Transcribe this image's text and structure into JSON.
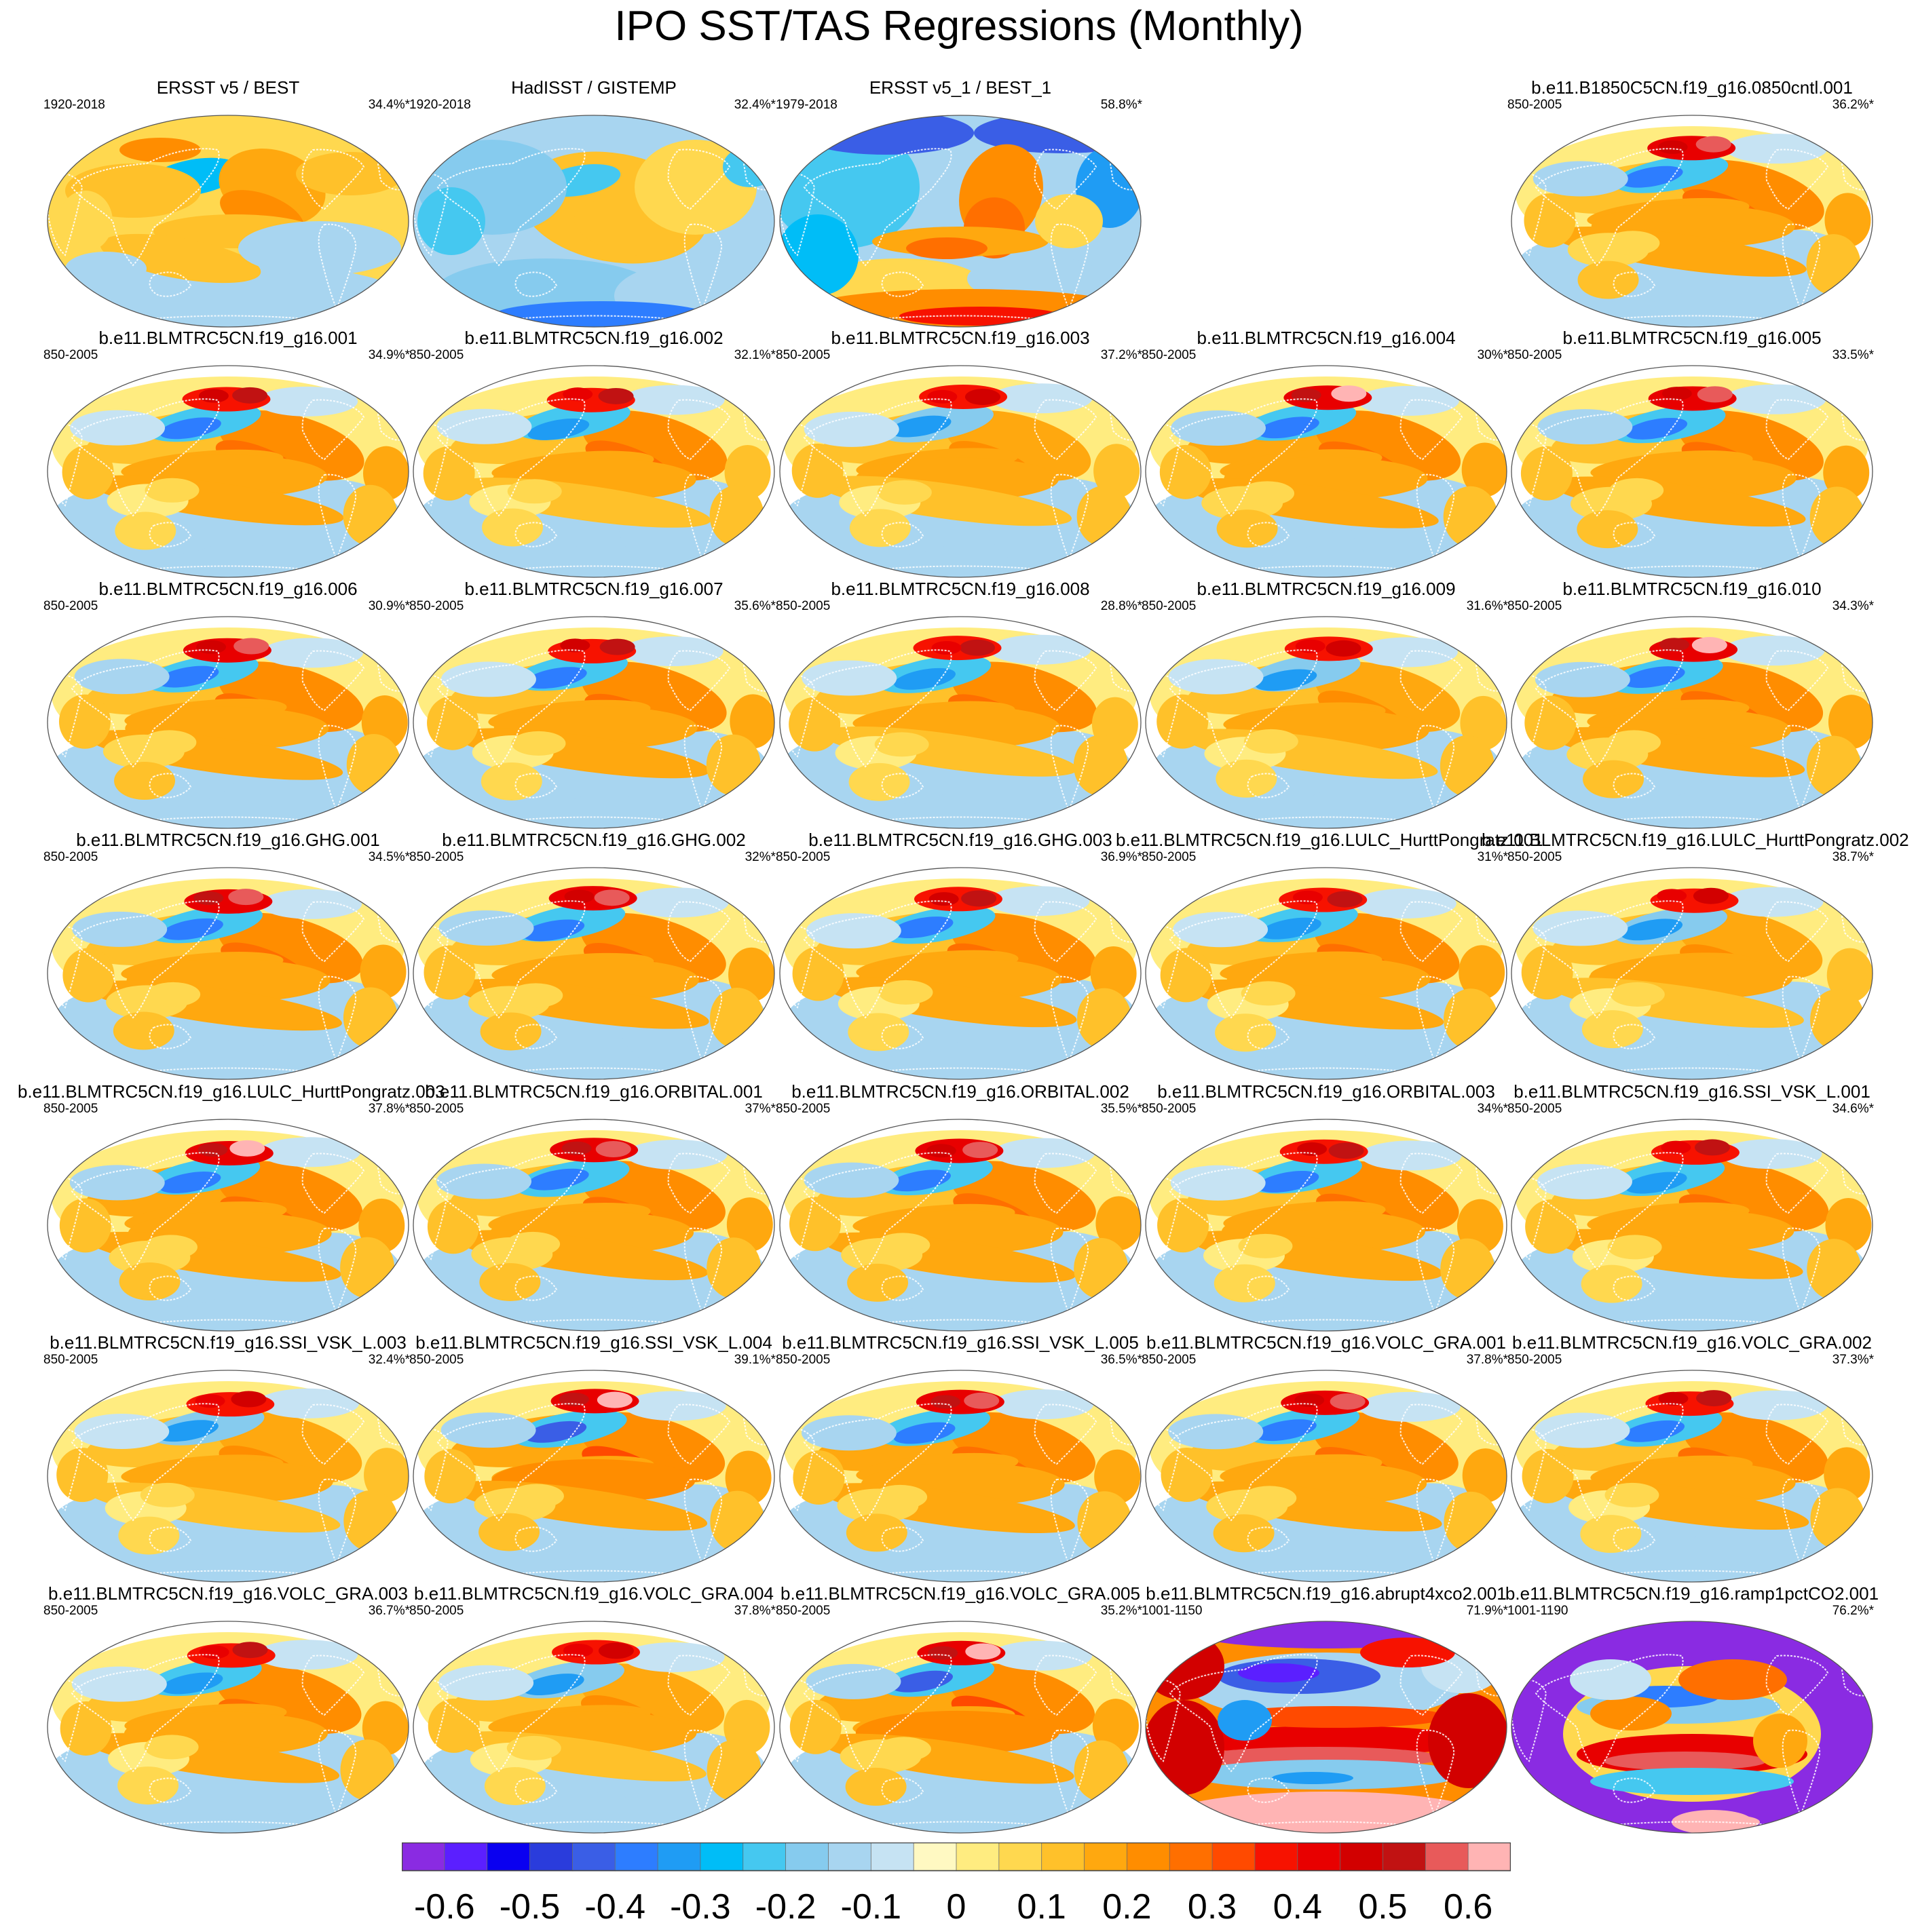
{
  "figure": {
    "title": "IPO SST/TAS Regressions (Monthly)"
  },
  "chart_data": {
    "type": "heatmap",
    "title": "IPO SST/TAS Regressions (Monthly)",
    "projection": "Robinson, Pacific-centered global map",
    "colorbar": {
      "ticks": [
        "-0.6",
        "-0.5",
        "-0.4",
        "-0.3",
        "-0.2",
        "-0.1",
        "0",
        "0.1",
        "0.2",
        "0.3",
        "0.4",
        "0.5",
        "0.6"
      ],
      "tick_values": [
        -0.6,
        -0.5,
        -0.4,
        -0.3,
        -0.2,
        -0.1,
        0,
        0.1,
        0.2,
        0.3,
        0.4,
        0.5,
        0.6
      ],
      "range": [
        -0.65,
        0.65
      ],
      "step": 0.05,
      "colors": [
        "#8a2be2",
        "#5b1fff",
        "#0a00f0",
        "#2a3cdc",
        "#3a5ee6",
        "#2d7dff",
        "#1f9cf4",
        "#00bdf7",
        "#45c8f0",
        "#86cbee",
        "#a8d5f0",
        "#c6e3f3",
        "#fff9c2",
        "#ffec80",
        "#ffd84f",
        "#ffc12a",
        "#ffa80f",
        "#ff8d00",
        "#ff6f00",
        "#ff4a00",
        "#f71200",
        "#e80000",
        "#d20000",
        "#c11212",
        "#e85a5a",
        "#ffb4b4"
      ]
    },
    "panels": [
      {
        "title": "ERSST v5 / BEST",
        "period": "1920-2018",
        "pct": "34.4%*",
        "style": "obs"
      },
      {
        "title": "HadISST / GISTEMP",
        "period": "1920-2018",
        "pct": "32.4%*",
        "style": "obs2"
      },
      {
        "title": "ERSST v5_1 / BEST_1",
        "period": "1979-2018",
        "pct": "58.8%*",
        "style": "obs3"
      },
      null,
      {
        "title": "b.e11.B1850C5CN.f19_g16.0850cntl.001",
        "period": "850-2005",
        "pct": "36.2%*",
        "style": "model"
      },
      {
        "title": "b.e11.BLMTRC5CN.f19_g16.001",
        "period": "850-2005",
        "pct": "34.9%*",
        "style": "model"
      },
      {
        "title": "b.e11.BLMTRC5CN.f19_g16.002",
        "period": "850-2005",
        "pct": "32.1%*",
        "style": "model"
      },
      {
        "title": "b.e11.BLMTRC5CN.f19_g16.003",
        "period": "850-2005",
        "pct": "37.2%*",
        "style": "model"
      },
      {
        "title": "b.e11.BLMTRC5CN.f19_g16.004",
        "period": "850-2005",
        "pct": "30%*",
        "style": "model"
      },
      {
        "title": "b.e11.BLMTRC5CN.f19_g16.005",
        "period": "850-2005",
        "pct": "33.5%*",
        "style": "model"
      },
      {
        "title": "b.e11.BLMTRC5CN.f19_g16.006",
        "period": "850-2005",
        "pct": "30.9%*",
        "style": "model"
      },
      {
        "title": "b.e11.BLMTRC5CN.f19_g16.007",
        "period": "850-2005",
        "pct": "35.6%*",
        "style": "model"
      },
      {
        "title": "b.e11.BLMTRC5CN.f19_g16.008",
        "period": "850-2005",
        "pct": "28.8%*",
        "style": "model"
      },
      {
        "title": "b.e11.BLMTRC5CN.f19_g16.009",
        "period": "850-2005",
        "pct": "31.6%*",
        "style": "model"
      },
      {
        "title": "b.e11.BLMTRC5CN.f19_g16.010",
        "period": "850-2005",
        "pct": "34.3%*",
        "style": "model"
      },
      {
        "title": "b.e11.BLMTRC5CN.f19_g16.GHG.001",
        "period": "850-2005",
        "pct": "34.5%*",
        "style": "model"
      },
      {
        "title": "b.e11.BLMTRC5CN.f19_g16.GHG.002",
        "period": "850-2005",
        "pct": "32%*",
        "style": "model"
      },
      {
        "title": "b.e11.BLMTRC5CN.f19_g16.GHG.003",
        "period": "850-2005",
        "pct": "36.9%*",
        "style": "model"
      },
      {
        "title": "b.e11.BLMTRC5CN.f19_g16.LULC_HurttPongratz.001",
        "period": "850-2005",
        "pct": "31%*",
        "style": "model"
      },
      {
        "title": "b.e11.BLMTRC5CN.f19_g16.LULC_HurttPongratz.002",
        "period": "850-2005",
        "pct": "38.7%*",
        "style": "model"
      },
      {
        "title": "b.e11.BLMTRC5CN.f19_g16.LULC_HurttPongratz.003",
        "period": "850-2005",
        "pct": "37.8%*",
        "style": "model"
      },
      {
        "title": "b.e11.BLMTRC5CN.f19_g16.ORBITAL.001",
        "period": "850-2005",
        "pct": "37%*",
        "style": "model"
      },
      {
        "title": "b.e11.BLMTRC5CN.f19_g16.ORBITAL.002",
        "period": "850-2005",
        "pct": "35.5%*",
        "style": "model"
      },
      {
        "title": "b.e11.BLMTRC5CN.f19_g16.ORBITAL.003",
        "period": "850-2005",
        "pct": "34%*",
        "style": "model"
      },
      {
        "title": "b.e11.BLMTRC5CN.f19_g16.SSI_VSK_L.001",
        "period": "850-2005",
        "pct": "34.6%*",
        "style": "model"
      },
      {
        "title": "b.e11.BLMTRC5CN.f19_g16.SSI_VSK_L.003",
        "period": "850-2005",
        "pct": "32.4%*",
        "style": "model"
      },
      {
        "title": "b.e11.BLMTRC5CN.f19_g16.SSI_VSK_L.004",
        "period": "850-2005",
        "pct": "39.1%*",
        "style": "model"
      },
      {
        "title": "b.e11.BLMTRC5CN.f19_g16.SSI_VSK_L.005",
        "period": "850-2005",
        "pct": "36.5%*",
        "style": "model"
      },
      {
        "title": "b.e11.BLMTRC5CN.f19_g16.VOLC_GRA.001",
        "period": "850-2005",
        "pct": "37.8%*",
        "style": "model"
      },
      {
        "title": "b.e11.BLMTRC5CN.f19_g16.VOLC_GRA.002",
        "period": "850-2005",
        "pct": "37.3%*",
        "style": "model"
      },
      {
        "title": "b.e11.BLMTRC5CN.f19_g16.VOLC_GRA.003",
        "period": "850-2005",
        "pct": "36.7%*",
        "style": "model"
      },
      {
        "title": "b.e11.BLMTRC5CN.f19_g16.VOLC_GRA.004",
        "period": "850-2005",
        "pct": "37.8%*",
        "style": "model"
      },
      {
        "title": "b.e11.BLMTRC5CN.f19_g16.VOLC_GRA.005",
        "period": "850-2005",
        "pct": "35.2%*",
        "style": "model"
      },
      {
        "title": "b.e11.BLMTRC5CN.f19_g16.abrupt4xco2.001",
        "period": "1001-1150",
        "pct": "71.9%*",
        "style": "abrupt"
      },
      {
        "title": "b.e11.BLMTRC5CN.f19_g16.ramp1pctCO2.001",
        "period": "1001-1190",
        "pct": "76.2%*",
        "style": "ramp"
      }
    ]
  }
}
